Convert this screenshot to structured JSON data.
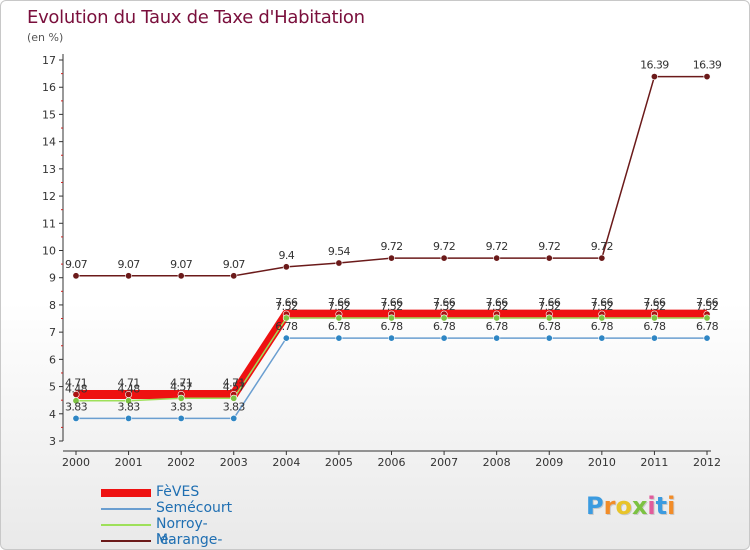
{
  "title": "Evolution du Taux de Taxe d'Habitation",
  "unit": "(en %)",
  "logo": {
    "letters": [
      "P",
      "r",
      "o",
      "x",
      "i",
      "t",
      "i"
    ],
    "colors": [
      "#3b9be0",
      "#f28c28",
      "#e8c42a",
      "#7cc242",
      "#e25c9b",
      "#3b9be0",
      "#f28c28"
    ]
  },
  "chart_data": {
    "type": "line",
    "x": [
      "2000",
      "2001",
      "2002",
      "2003",
      "2004",
      "2005",
      "2006",
      "2007",
      "2008",
      "2009",
      "2010",
      "2011",
      "2012"
    ],
    "ylim": [
      3,
      17
    ],
    "yticks": [
      "3",
      "4",
      "5",
      "6",
      "7",
      "8",
      "9",
      "10",
      "11",
      "12",
      "13",
      "14",
      "15",
      "16",
      "17"
    ],
    "grid": false,
    "legend_position": "bottom-left",
    "series": [
      {
        "name": "Marange-Silvange",
        "color": "#6b1a1a",
        "width": 1.5,
        "marker": "#6b1a1a",
        "values": [
          9.07,
          9.07,
          9.07,
          9.07,
          9.4,
          9.54,
          9.72,
          9.72,
          9.72,
          9.72,
          9.72,
          16.39,
          16.39
        ],
        "labels": [
          "9.07",
          "9.07",
          "9.07",
          "9.07",
          "9.4",
          "9.54",
          "9.72",
          "9.72",
          "9.72",
          "9.72",
          "9.72",
          "16.39",
          "16.39"
        ]
      },
      {
        "name": "Semécourt",
        "color": "#6a9ed0",
        "width": 1.5,
        "marker": "#2f86c4",
        "values": [
          3.83,
          3.83,
          3.83,
          3.83,
          6.78,
          6.78,
          6.78,
          6.78,
          6.78,
          6.78,
          6.78,
          6.78,
          6.78
        ],
        "labels": [
          "3.83",
          "3.83",
          "3.83",
          "3.83",
          "6.78",
          "6.78",
          "6.78",
          "6.78",
          "6.78",
          "6.78",
          "6.78",
          "6.78",
          "6.78"
        ]
      },
      {
        "name": "FèVES",
        "color": "#ee1111",
        "width": 9,
        "marker": "#aa1111",
        "values": [
          4.71,
          4.71,
          4.71,
          4.71,
          7.66,
          7.66,
          7.66,
          7.66,
          7.66,
          7.66,
          7.66,
          7.66,
          7.66
        ],
        "labels": [
          "4.71",
          "4.71",
          "4.71",
          "4.71",
          "7.66",
          "7.66",
          "7.66",
          "7.66",
          "7.66",
          "7.66",
          "7.66",
          "7.66",
          "7.66"
        ]
      },
      {
        "name": "Norroy-le-Veneur",
        "color": "#9ee05a",
        "width": 1.5,
        "marker": "#7cc242",
        "values": [
          4.48,
          4.48,
          4.57,
          4.57,
          7.52,
          7.52,
          7.52,
          7.52,
          7.52,
          7.52,
          7.52,
          7.52,
          7.52
        ],
        "labels": [
          "4.48",
          "4.48",
          "4.57",
          "4.57",
          "7.52",
          "7.52",
          "7.52",
          "7.52",
          "7.52",
          "7.52",
          "7.52",
          "7.52",
          "7.52"
        ]
      }
    ],
    "legend": [
      "FèVES",
      "Semécourt",
      "Norroy-le-Veneur",
      "Marange-Silvange"
    ]
  }
}
